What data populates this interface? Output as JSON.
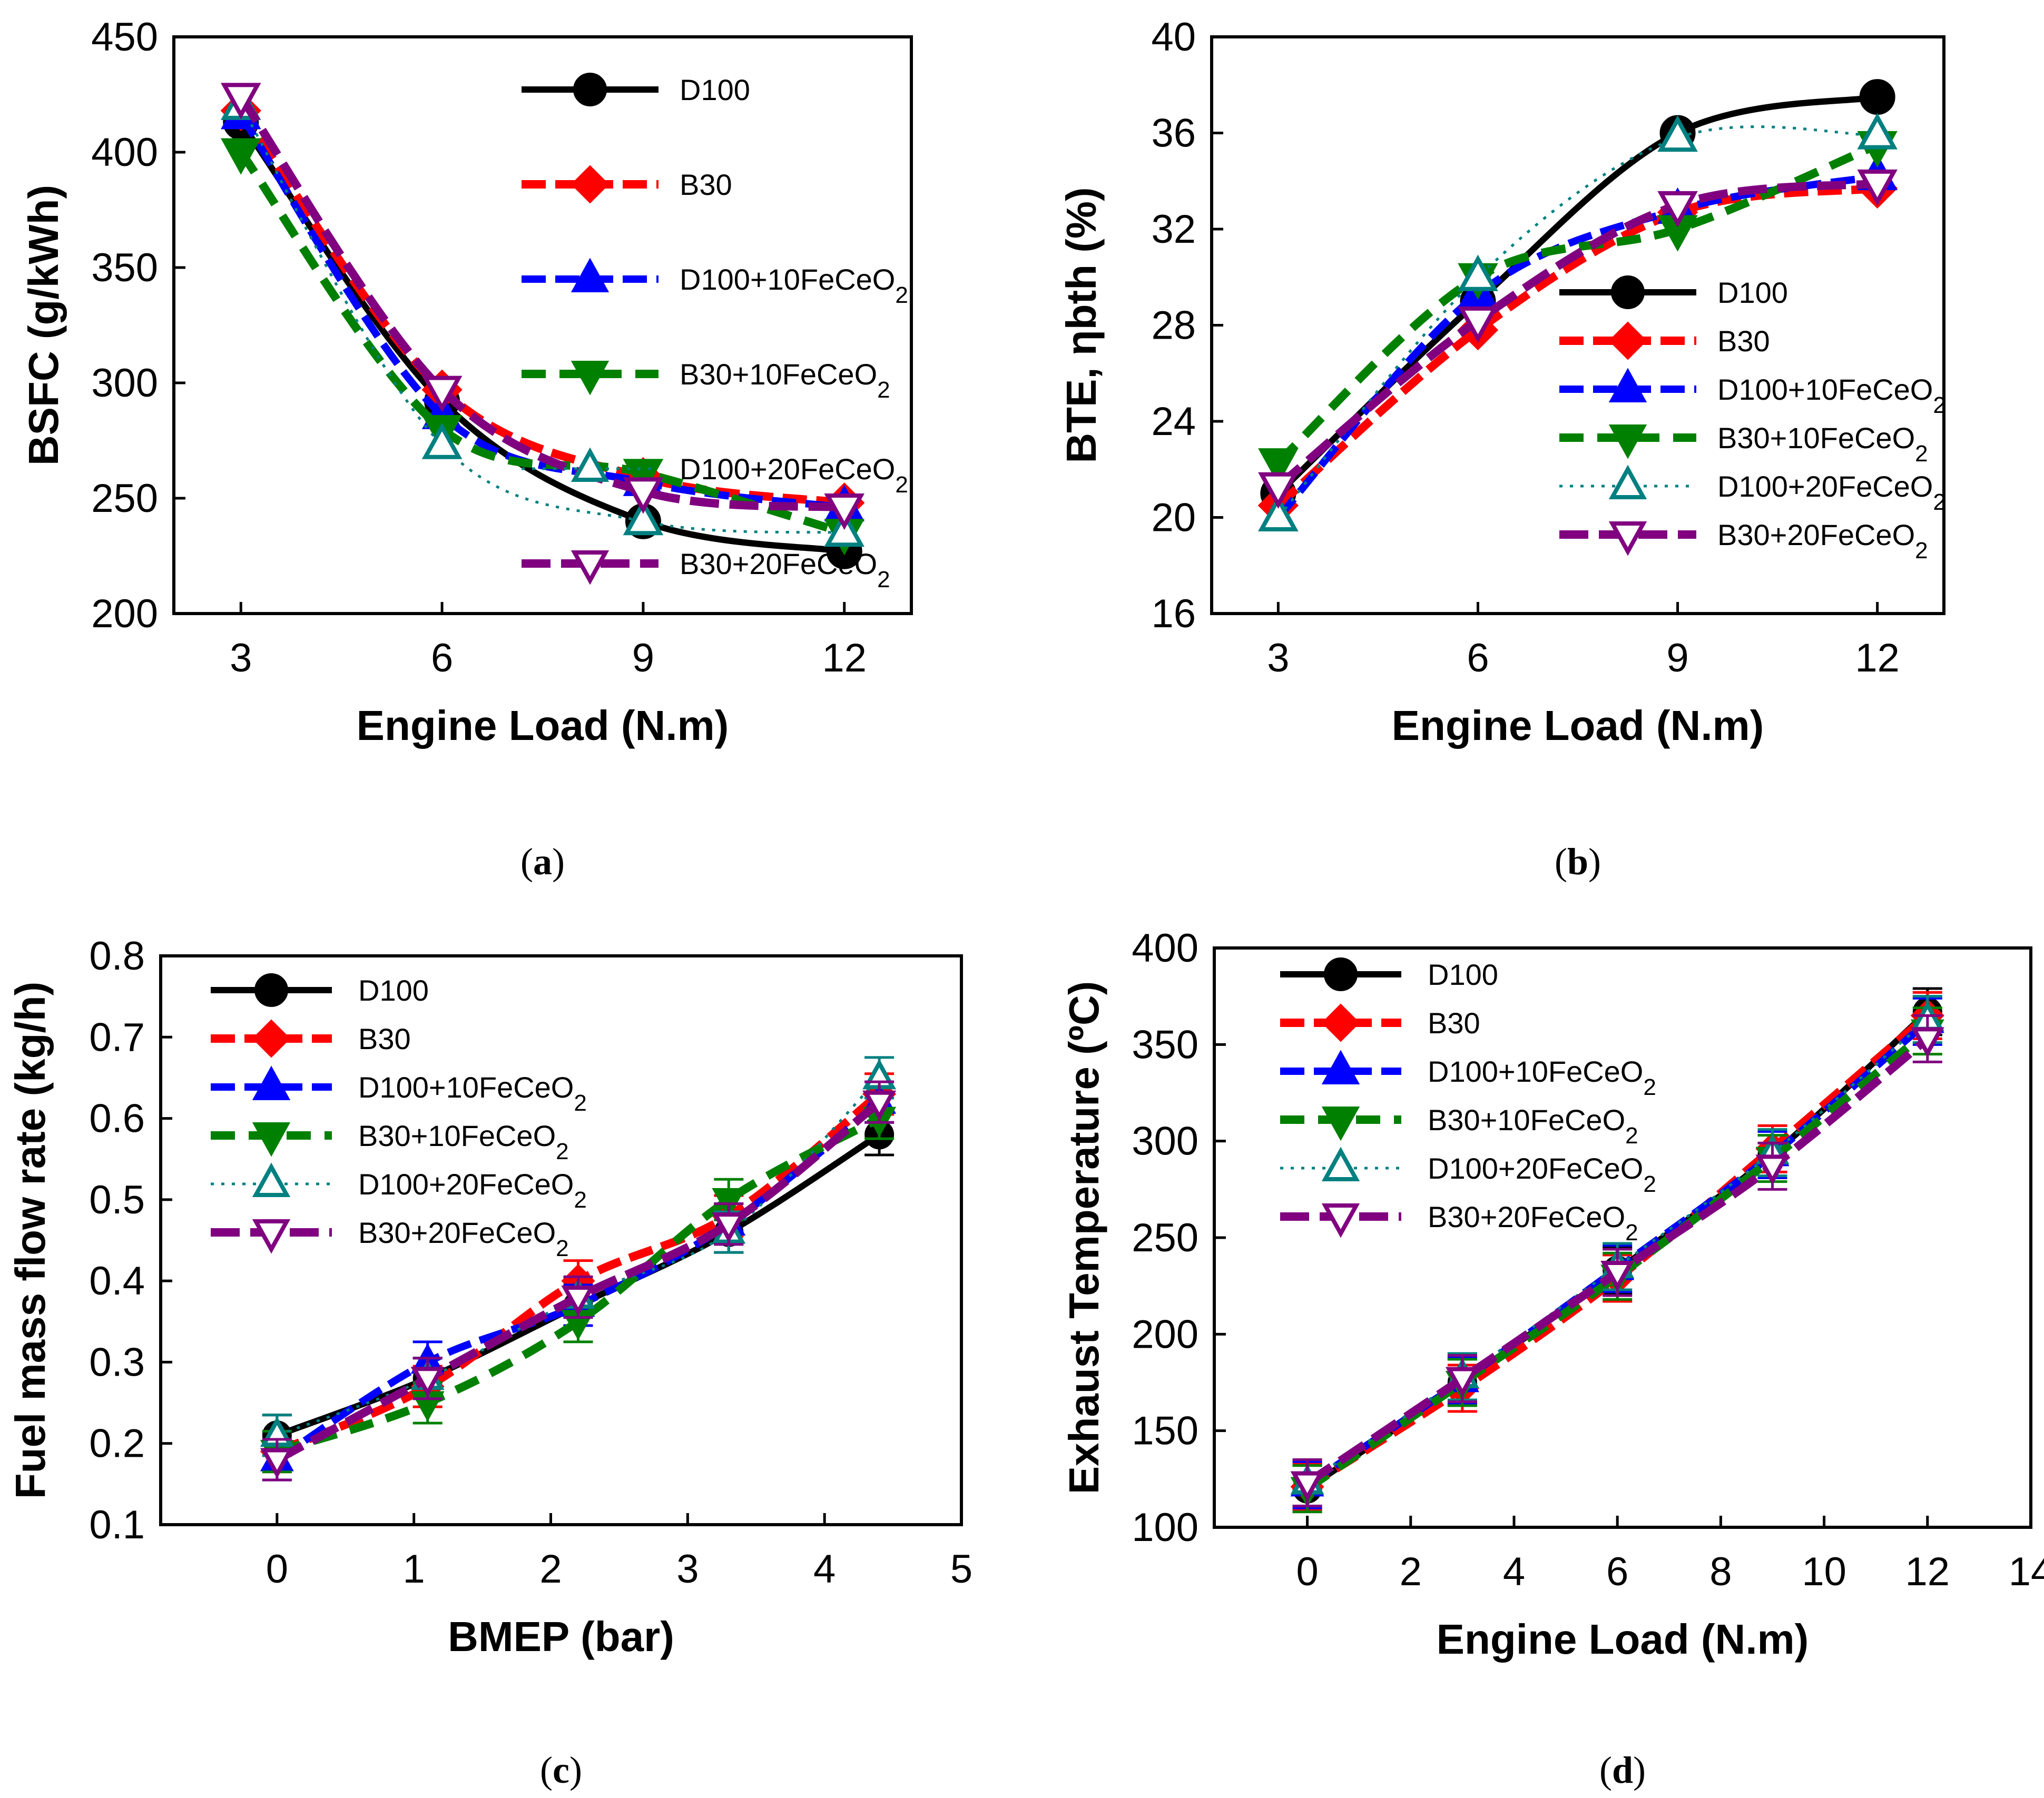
{
  "chart_data": [
    {
      "type": "line",
      "id": "a",
      "caption_label": "a",
      "xlabel": "Engine Load (N.m)",
      "ylabel": "BSFC (g/kWh)",
      "xlim": [
        2,
        13
      ],
      "ylim": [
        200,
        450
      ],
      "xticks": [
        3,
        6,
        9,
        12
      ],
      "yticks": [
        200,
        250,
        300,
        350,
        400,
        450
      ],
      "x": [
        3,
        6,
        9,
        12
      ],
      "legend_position": "top-right",
      "series": [
        {
          "name": "D100",
          "values": [
            413,
            292,
            240,
            227
          ]
        },
        {
          "name": "B30",
          "values": [
            418,
            297,
            259,
            248
          ]
        },
        {
          "name": "D100+10FeCeO₂",
          "values": [
            416,
            286,
            257,
            246
          ]
        },
        {
          "name": "B30+10FeCeO₂",
          "values": [
            400,
            280,
            261,
            235
          ]
        },
        {
          "name": "D100+20FeCeO₂",
          "values": [
            420,
            273,
            240,
            235
          ]
        },
        {
          "name": "B30+20FeCeO₂",
          "values": [
            424,
            297,
            253,
            246
          ]
        }
      ]
    },
    {
      "type": "line",
      "id": "b",
      "caption_label": "b",
      "xlabel": "Engine Load (N.m)",
      "ylabel": "BTE, ηbth (%)",
      "xlim": [
        2,
        13
      ],
      "ylim": [
        16,
        40
      ],
      "xticks": [
        3,
        6,
        9,
        12
      ],
      "yticks": [
        16,
        20,
        24,
        28,
        32,
        36,
        40
      ],
      "x": [
        3,
        6,
        9,
        12
      ],
      "legend_position": "lower-right",
      "series": [
        {
          "name": "D100",
          "values": [
            21,
            29,
            36,
            37.5
          ]
        },
        {
          "name": "B30",
          "values": [
            20.5,
            27.8,
            32.7,
            33.7
          ]
        },
        {
          "name": "D100+10FeCeO₂",
          "values": [
            20,
            29.3,
            32.8,
            34.2
          ]
        },
        {
          "name": "B30+10FeCeO₂",
          "values": [
            22.3,
            30,
            32,
            35.5
          ]
        },
        {
          "name": "D100+20FeCeO₂",
          "values": [
            20,
            30,
            35.8,
            35.9
          ]
        },
        {
          "name": "B30+20FeCeO₂",
          "values": [
            21.3,
            28.2,
            33,
            33.9
          ]
        }
      ]
    },
    {
      "type": "line",
      "id": "c",
      "caption_label": "c",
      "xlabel": "BMEP (bar)",
      "ylabel": "Fuel mass flow rate (kg/h)",
      "xlim": [
        -0.85,
        5
      ],
      "ylim": [
        0.1,
        0.8
      ],
      "xticks": [
        0,
        1,
        2,
        3,
        4,
        5
      ],
      "yticks": [
        0.1,
        0.2,
        0.3,
        0.4,
        0.5,
        0.6,
        0.7,
        0.8
      ],
      "x": [
        0,
        1.1,
        2.2,
        3.3,
        4.4
      ],
      "legend_position": "top-left",
      "series": [
        {
          "name": "D100",
          "values": [
            0.21,
            0.28,
            0.37,
            0.46,
            0.58
          ]
        },
        {
          "name": "B30",
          "values": [
            0.19,
            0.27,
            0.4,
            0.48,
            0.63
          ]
        },
        {
          "name": "D100+10FeCeO₂",
          "values": [
            0.18,
            0.3,
            0.37,
            0.47,
            0.62
          ]
        },
        {
          "name": "B30+10FeCeO₂",
          "values": [
            0.19,
            0.25,
            0.35,
            0.5,
            0.6
          ]
        },
        {
          "name": "D100+20FeCeO₂",
          "values": [
            0.21,
            0.28,
            0.38,
            0.46,
            0.65
          ]
        },
        {
          "name": "B30+20FeCeO₂",
          "values": [
            0.18,
            0.28,
            0.38,
            0.47,
            0.62
          ]
        }
      ],
      "error_bar": 0.025
    },
    {
      "type": "line",
      "id": "d",
      "caption_label": "d",
      "xlabel": "Engine Load (N.m)",
      "ylabel": "Exhaust Temperature (ºC)",
      "xlim": [
        -1.8,
        14
      ],
      "ylim": [
        100,
        400
      ],
      "xticks": [
        0,
        2,
        4,
        6,
        8,
        10,
        12,
        14
      ],
      "yticks": [
        100,
        150,
        200,
        250,
        300,
        350,
        400
      ],
      "x": [
        0,
        3,
        6,
        9,
        12
      ],
      "legend_position": "top-left",
      "series": [
        {
          "name": "D100",
          "values": [
            120,
            175,
            233,
            293,
            367
          ]
        },
        {
          "name": "B30",
          "values": [
            121,
            172,
            229,
            296,
            365
          ]
        },
        {
          "name": "D100+10FeCeO₂",
          "values": [
            122,
            176,
            234,
            293,
            362
          ]
        },
        {
          "name": "B30+10FeCeO₂",
          "values": [
            120,
            175,
            230,
            291,
            357
          ]
        },
        {
          "name": "D100+20FeCeO₂",
          "values": [
            123,
            178,
            235,
            294,
            363
          ]
        },
        {
          "name": "B30+20FeCeO₂",
          "values": [
            123,
            177,
            232,
            287,
            353
          ]
        }
      ],
      "error_bar": 12
    }
  ],
  "colors": {
    "D100": "#000000",
    "B30": "#ff0000",
    "D100+10FeCeO2": "#0000ff",
    "B30+10FeCeO2": "#008000",
    "D100+20FeCeO2": "#008080",
    "B30+20FeCeO2": "#800080"
  }
}
